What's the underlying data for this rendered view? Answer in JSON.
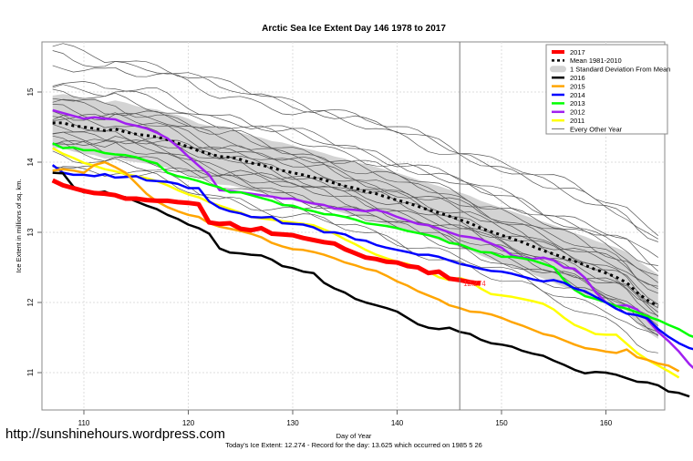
{
  "watermark": "http://sunshinehours.wordpress.com",
  "chart_data": {
    "type": "line",
    "title": "Arctic Sea Ice Extent Day 146 1978 to 2017",
    "xlabel": "Day of Year",
    "ylabel": "Ice Extent in millions of sq. km.",
    "subtitle": "Today's Ice Extent: 12.274  - Record for the day: 13.625 which occurred on 1985 5 26",
    "xlim": [
      106,
      166
    ],
    "ylim": [
      10.5,
      15.7
    ],
    "xticks": [
      110,
      120,
      130,
      140,
      150,
      160
    ],
    "yticks": [
      11,
      12,
      13,
      14,
      15
    ],
    "grid": true,
    "current_day": 146,
    "current_value_label": "12.274",
    "legend_position": "top-right",
    "legend": [
      {
        "label": "2017",
        "color": "#ff0000",
        "style": "thick"
      },
      {
        "label": "Mean 1981-2010",
        "color": "#000000",
        "style": "dotted"
      },
      {
        "label": "1 Standard Deviation From Mean",
        "color": "#d3d3d3",
        "style": "band"
      },
      {
        "label": "2016",
        "color": "#000000",
        "style": "solid"
      },
      {
        "label": "2015",
        "color": "#ffa500",
        "style": "solid"
      },
      {
        "label": "2014",
        "color": "#0000ff",
        "style": "solid"
      },
      {
        "label": "2013",
        "color": "#00ff00",
        "style": "solid"
      },
      {
        "label": "2012",
        "color": "#a020f0",
        "style": "solid"
      },
      {
        "label": "2011",
        "color": "#ffff00",
        "style": "solid"
      },
      {
        "label": "Every Other Year",
        "color": "#555555",
        "style": "thin"
      }
    ],
    "x_start": 107,
    "mean": [
      14.56,
      14.56,
      14.52,
      14.5,
      14.48,
      14.45,
      14.47,
      14.43,
      14.4,
      14.38,
      14.36,
      14.32,
      14.27,
      14.22,
      14.16,
      14.12,
      14.08,
      14.07,
      14.04,
      13.99,
      13.96,
      13.92,
      13.88,
      13.85,
      13.82,
      13.78,
      13.75,
      13.7,
      13.66,
      13.63,
      13.58,
      13.55,
      13.5,
      13.46,
      13.42,
      13.37,
      13.32,
      13.28,
      13.23,
      13.18,
      13.13,
      13.06,
      13.01,
      12.96,
      12.91,
      12.86,
      12.8,
      12.74,
      12.69,
      12.64,
      12.59,
      12.53,
      12.47,
      12.42,
      12.36,
      12.28,
      12.14,
      12.03,
      11.95
    ],
    "std_upper": [
      14.95,
      14.97,
      14.95,
      14.9,
      14.92,
      14.85,
      14.88,
      14.85,
      14.8,
      14.77,
      14.75,
      14.7,
      14.67,
      14.62,
      14.55,
      14.52,
      14.48,
      14.46,
      14.42,
      14.38,
      14.35,
      14.3,
      14.28,
      14.24,
      14.2,
      14.17,
      14.13,
      14.08,
      14.05,
      14.0,
      13.97,
      13.93,
      13.89,
      13.85,
      13.8,
      13.75,
      13.7,
      13.66,
      13.61,
      13.57,
      13.52,
      13.45,
      13.4,
      13.35,
      13.3,
      13.25,
      13.2,
      13.15,
      13.1,
      13.05,
      12.99,
      12.94,
      12.88,
      12.83,
      12.78,
      12.72,
      12.6,
      12.5,
      12.4
    ],
    "std_lower": [
      14.2,
      14.2,
      14.15,
      14.12,
      14.1,
      14.05,
      14.06,
      14.02,
      14.0,
      13.98,
      13.95,
      13.92,
      13.88,
      13.82,
      13.77,
      13.73,
      13.68,
      13.67,
      13.64,
      13.6,
      13.56,
      13.53,
      13.49,
      13.46,
      13.42,
      13.38,
      13.35,
      13.31,
      13.27,
      13.23,
      13.19,
      13.15,
      13.11,
      13.07,
      13.03,
      12.98,
      12.94,
      12.89,
      12.84,
      12.79,
      12.74,
      12.67,
      12.61,
      12.56,
      12.51,
      12.46,
      12.4,
      12.34,
      12.28,
      12.22,
      12.17,
      12.11,
      12.05,
      12.0,
      11.95,
      11.88,
      11.7,
      11.58,
      11.48
    ],
    "series": [
      {
        "name": "2017",
        "values": [
          13.74,
          13.67,
          13.63,
          13.59,
          13.56,
          13.55,
          13.53,
          13.48,
          13.48,
          13.46,
          13.45,
          13.45,
          13.43,
          13.42,
          13.4,
          13.14,
          13.12,
          13.13,
          13.05,
          13.03,
          13.06,
          12.98,
          12.97,
          12.96,
          12.92,
          12.89,
          12.86,
          12.84,
          12.76,
          12.7,
          12.64,
          12.62,
          12.58,
          12.57,
          12.52,
          12.5,
          12.42,
          12.44,
          12.34,
          12.32,
          12.29,
          12.27
        ]
      },
      {
        "name": "2016",
        "values": [
          13.85,
          13.84,
          13.65,
          13.57,
          13.56,
          13.58,
          13.52,
          13.5,
          13.44,
          13.38,
          13.33,
          13.25,
          13.19,
          13.11,
          13.06,
          12.98,
          12.77,
          12.71,
          12.7,
          12.68,
          12.67,
          12.61,
          12.52,
          12.49,
          12.44,
          12.42,
          12.28,
          12.2,
          12.14,
          12.05,
          12.0,
          11.96,
          11.92,
          11.87,
          11.78,
          11.69,
          11.64,
          11.62,
          11.64,
          11.58,
          11.55,
          11.47,
          11.42,
          11.4,
          11.37,
          11.31,
          11.27,
          11.24,
          11.17,
          11.11,
          11.04,
          10.99,
          11.01,
          11.0,
          10.97,
          10.92,
          10.87,
          10.86,
          10.82,
          10.73,
          10.71,
          10.66
        ]
      },
      {
        "name": "2015",
        "values": [
          13.88,
          13.9,
          13.88,
          13.85,
          13.96,
          14.0,
          13.93,
          13.85,
          13.7,
          13.55,
          13.44,
          13.36,
          13.3,
          13.25,
          13.22,
          13.13,
          13.08,
          13.05,
          13.02,
          12.98,
          12.93,
          12.85,
          12.8,
          12.76,
          12.75,
          12.72,
          12.68,
          12.63,
          12.57,
          12.53,
          12.48,
          12.45,
          12.38,
          12.3,
          12.24,
          12.16,
          12.1,
          12.04,
          11.96,
          11.92,
          11.87,
          11.86,
          11.83,
          11.78,
          11.72,
          11.67,
          11.61,
          11.55,
          11.52,
          11.46,
          11.4,
          11.35,
          11.33,
          11.3,
          11.28,
          11.33,
          11.22,
          11.18,
          11.13,
          11.1,
          11.02
        ]
      },
      {
        "name": "2014",
        "values": [
          13.96,
          13.85,
          13.82,
          13.82,
          13.8,
          13.83,
          13.78,
          13.79,
          13.8,
          13.74,
          13.73,
          13.72,
          13.69,
          13.63,
          13.63,
          13.44,
          13.35,
          13.3,
          13.27,
          13.22,
          13.21,
          13.22,
          13.13,
          13.12,
          13.11,
          13.07,
          13.0,
          13.0,
          12.97,
          12.9,
          12.88,
          12.82,
          12.78,
          12.75,
          12.72,
          12.68,
          12.68,
          12.65,
          12.6,
          12.55,
          12.52,
          12.48,
          12.45,
          12.44,
          12.41,
          12.37,
          12.33,
          12.3,
          12.32,
          12.28,
          12.2,
          12.16,
          12.08,
          12.0,
          11.91,
          11.84,
          11.82,
          11.77,
          11.62,
          11.51,
          11.42,
          11.35,
          11.31,
          11.3
        ]
      },
      {
        "name": "2013",
        "values": [
          14.27,
          14.2,
          14.21,
          14.17,
          14.17,
          14.13,
          14.11,
          14.1,
          14.07,
          14.02,
          13.98,
          13.85,
          13.8,
          13.77,
          13.73,
          13.68,
          13.64,
          13.57,
          13.57,
          13.53,
          13.49,
          13.45,
          13.39,
          13.38,
          13.33,
          13.3,
          13.26,
          13.25,
          13.22,
          13.18,
          13.13,
          13.11,
          13.09,
          13.06,
          13.02,
          12.99,
          12.96,
          12.92,
          12.85,
          12.83,
          12.77,
          12.72,
          12.71,
          12.65,
          12.65,
          12.63,
          12.6,
          12.55,
          12.5,
          12.32,
          12.18,
          12.09,
          12.05,
          12.0,
          11.95,
          11.91,
          11.86,
          11.8,
          11.75,
          11.68,
          11.62,
          11.53,
          11.48
        ]
      },
      {
        "name": "2012",
        "values": [
          14.74,
          14.7,
          14.66,
          14.62,
          14.64,
          14.62,
          14.61,
          14.55,
          14.52,
          14.48,
          14.42,
          14.34,
          14.22,
          14.08,
          13.95,
          13.82,
          13.6,
          13.59,
          13.57,
          13.55,
          13.53,
          13.51,
          13.48,
          13.48,
          13.44,
          13.41,
          13.39,
          13.34,
          13.33,
          13.32,
          13.3,
          13.32,
          13.28,
          13.22,
          13.17,
          13.12,
          13.1,
          13.05,
          13.0,
          12.95,
          12.93,
          12.9,
          12.84,
          12.78,
          12.67,
          12.64,
          12.62,
          12.64,
          12.6,
          12.5,
          12.48,
          12.35,
          12.15,
          12.0,
          11.95,
          11.96,
          11.9,
          11.75,
          11.58,
          11.45,
          11.3,
          11.12,
          10.98,
          10.88,
          10.77
        ]
      },
      {
        "name": "2011",
        "values": [
          14.2,
          14.12,
          14.06,
          13.99,
          13.95,
          13.9,
          13.87,
          13.83,
          13.8,
          13.77,
          13.73,
          13.67,
          13.6,
          13.54,
          13.5,
          13.43,
          13.38,
          13.33,
          13.28,
          13.22,
          13.2,
          13.18,
          13.16,
          13.14,
          13.12,
          13.1,
          13.04,
          12.98,
          12.9,
          12.83,
          12.75,
          12.68,
          12.63,
          12.58,
          12.55,
          12.49,
          12.44,
          12.36,
          12.32,
          12.35,
          12.3,
          12.2,
          12.12,
          12.1,
          12.08,
          12.05,
          12.02,
          11.98,
          11.9,
          11.78,
          11.68,
          11.62,
          11.55,
          11.54,
          11.54,
          11.41,
          11.28,
          11.18,
          11.1,
          11.02,
          10.93
        ]
      }
    ]
  }
}
